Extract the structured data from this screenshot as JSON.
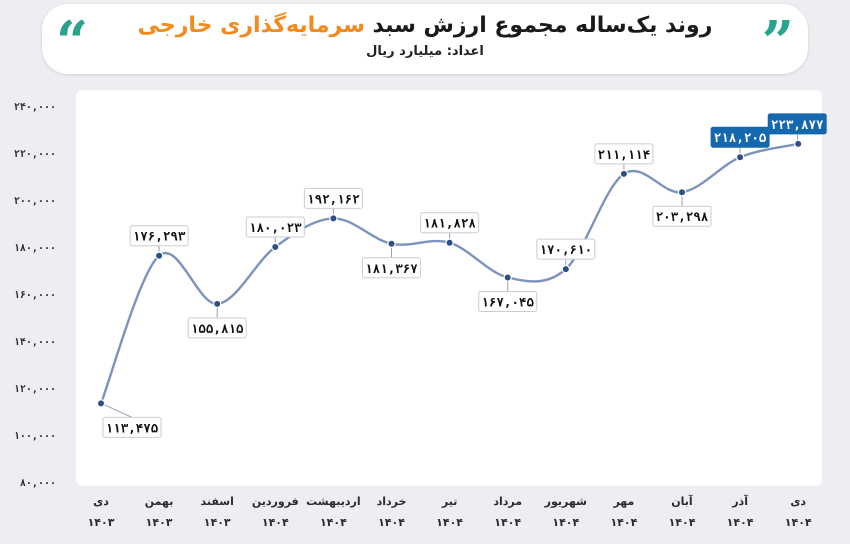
{
  "header": {
    "title_main": "روند یک‌ساله مجموع ارزش سبد",
    "title_accent": "سرمایه‌گذاری خارجی",
    "unit": "اعداد: میلیارد ریال",
    "quote_left": "“",
    "quote_right": "”"
  },
  "colors": {
    "line": "#7b93bd",
    "marker": "#2c4f8a",
    "highlight": "#1568ad",
    "title_accent": "#f28a1e",
    "quote": "#27a38f"
  },
  "chart_data": {
    "type": "line",
    "title": "روند یک‌ساله مجموع ارزش سبد سرمایه‌گذاری خارجی",
    "unit": "اعداد: میلیارد ریال",
    "categories": [
      {
        "month": "دی",
        "year": "۱۴۰۳"
      },
      {
        "month": "بهمن",
        "year": "۱۴۰۳"
      },
      {
        "month": "اسفند",
        "year": "۱۴۰۳"
      },
      {
        "month": "فروردین",
        "year": "۱۴۰۴"
      },
      {
        "month": "اردیبهشت",
        "year": "۱۴۰۴"
      },
      {
        "month": "خرداد",
        "year": "۱۴۰۴"
      },
      {
        "month": "تیر",
        "year": "۱۴۰۴"
      },
      {
        "month": "مرداد",
        "year": "۱۴۰۴"
      },
      {
        "month": "شهریور",
        "year": "۱۴۰۴"
      },
      {
        "month": "مهر",
        "year": "۱۴۰۴"
      },
      {
        "month": "آبان",
        "year": "۱۴۰۴"
      },
      {
        "month": "آذر",
        "year": "۱۴۰۴"
      },
      {
        "month": "دی",
        "year": "۱۴۰۴"
      }
    ],
    "values": [
      113475,
      176293,
      155815,
      180023,
      192162,
      181367,
      181828,
      167045,
      170610,
      211114,
      203298,
      218205,
      223877
    ],
    "data_labels": [
      "۱۱۳,۴۷۵",
      "۱۷۶,۲۹۳",
      "۱۵۵,۸۱۵",
      "۱۸۰,۰۲۳",
      "۱۹۲,۱۶۲",
      "۱۸۱,۳۶۷",
      "۱۸۱,۸۲۸",
      "۱۶۷,۰۴۵",
      "۱۷۰,۶۱۰",
      "۲۱۱,۱۱۴",
      "۲۰۳,۲۹۸",
      "۲۱۸,۲۰۵",
      "۲۲۳,۸۷۷"
    ],
    "label_side": [
      "below",
      "above",
      "below",
      "above",
      "above",
      "below",
      "above",
      "below",
      "above",
      "above",
      "below",
      "above",
      "above"
    ],
    "highlighted": [
      11,
      12
    ],
    "yticks": [
      80000,
      100000,
      120000,
      140000,
      160000,
      180000,
      200000,
      220000,
      240000
    ],
    "ytick_labels": [
      "۸۰,۰۰۰",
      "۱۰۰,۰۰۰",
      "۱۲۰,۰۰۰",
      "۱۴۰,۰۰۰",
      "۱۶۰,۰۰۰",
      "۱۸۰,۰۰۰",
      "۲۰۰,۰۰۰",
      "۲۲۰,۰۰۰",
      "۲۴۰,۰۰۰"
    ],
    "ylim": [
      80000,
      240000
    ],
    "grid": false,
    "legend": "none"
  }
}
